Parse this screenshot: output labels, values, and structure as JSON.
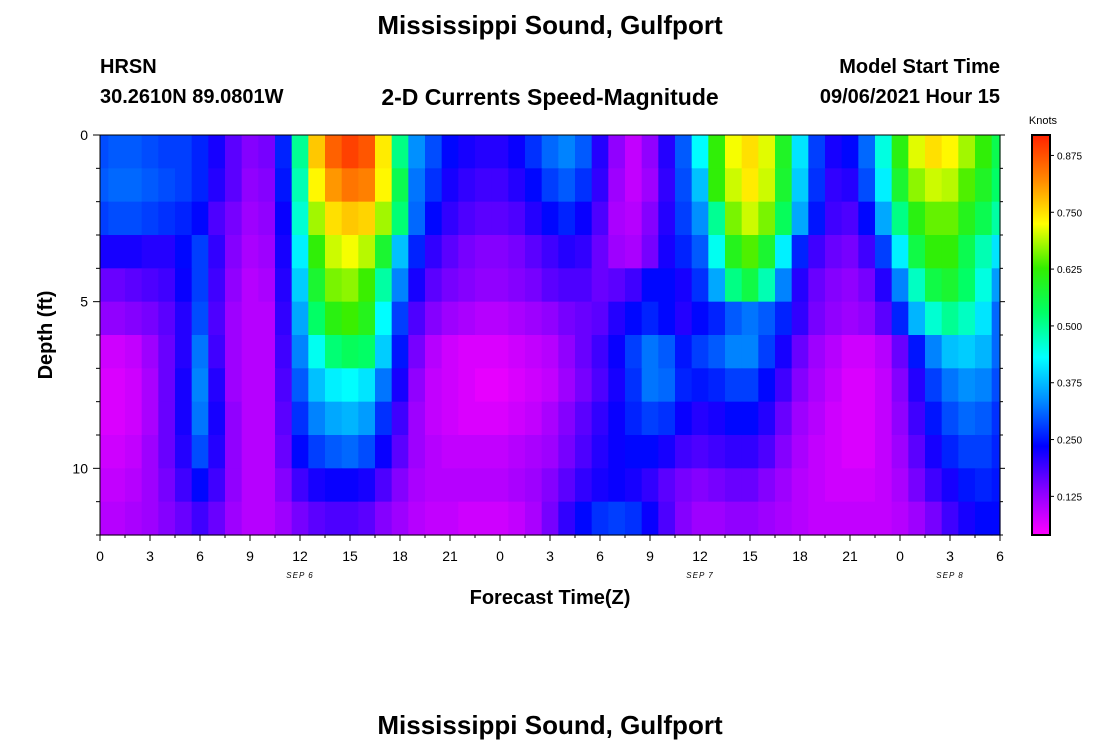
{
  "header": {
    "title": "Mississippi Sound, Gulfport",
    "station": "HRSN",
    "coordinates": "30.2610N  89.0801W",
    "subtitle": "2-D Currents Speed-Magnitude",
    "model_start_label": "Model Start Time",
    "model_start_value": "09/06/2021 Hour 15"
  },
  "footer": {
    "title": "Mississippi Sound, Gulfport"
  },
  "chart_data": {
    "type": "heatmap",
    "title": "2-D Currents Speed-Magnitude",
    "xlabel": "Forecast Time(Z)",
    "ylabel": "Depth (ft)",
    "x_tick_labels": [
      "0",
      "3",
      "6",
      "9",
      "12",
      "15",
      "18",
      "21",
      "0",
      "3",
      "6",
      "9",
      "12",
      "15",
      "18",
      "21",
      "0",
      "3",
      "6"
    ],
    "x_range_hours": [
      0,
      54
    ],
    "date_labels": [
      {
        "text": "SEP 6",
        "hour": 12
      },
      {
        "text": "SEP 7",
        "hour": 36
      },
      {
        "text": "SEP 8",
        "hour": 51
      }
    ],
    "y_ticks": [
      0,
      5,
      10
    ],
    "y_range_ft": [
      0,
      12
    ],
    "colorbar": {
      "label": "Knots",
      "range": [
        0.04,
        0.92
      ],
      "ticks": [
        "0.125",
        "0.250",
        "0.375",
        "0.500",
        "0.625",
        "0.750",
        "0.875"
      ],
      "colors": [
        "#ff00ff",
        "#8800ff",
        "#0000ff",
        "#0088ff",
        "#00ffff",
        "#00ff66",
        "#33ee00",
        "#ffff00",
        "#ff8800",
        "#ff2200"
      ]
    },
    "depth_layers_ft": [
      0.5,
      1.5,
      2.5,
      3.5,
      4.5,
      5.5,
      6.5,
      7.5,
      8.5,
      9.5,
      10.5,
      11.5
    ],
    "series": [
      {
        "depth_ft": 0.5,
        "values": [
          0.29,
          0.3,
          0.3,
          0.29,
          0.28,
          0.28,
          0.26,
          0.22,
          0.17,
          0.14,
          0.15,
          0.26,
          0.5,
          0.77,
          0.86,
          0.89,
          0.87,
          0.74,
          0.51,
          0.34,
          0.29,
          0.24,
          0.22,
          0.21,
          0.21,
          0.23,
          0.27,
          0.31,
          0.33,
          0.3,
          0.21,
          0.13,
          0.09,
          0.13,
          0.21,
          0.3,
          0.43,
          0.62,
          0.72,
          0.75,
          0.71,
          0.59,
          0.41,
          0.28,
          0.22,
          0.24,
          0.31,
          0.45,
          0.61,
          0.71,
          0.75,
          0.73,
          0.68,
          0.62,
          0.55
        ]
      },
      {
        "depth_ft": 1.5,
        "values": [
          0.3,
          0.31,
          0.31,
          0.3,
          0.29,
          0.28,
          0.26,
          0.21,
          0.17,
          0.13,
          0.14,
          0.25,
          0.48,
          0.73,
          0.81,
          0.84,
          0.83,
          0.73,
          0.55,
          0.32,
          0.27,
          0.22,
          0.2,
          0.19,
          0.19,
          0.21,
          0.24,
          0.28,
          0.3,
          0.27,
          0.2,
          0.12,
          0.09,
          0.12,
          0.2,
          0.29,
          0.38,
          0.62,
          0.7,
          0.74,
          0.7,
          0.58,
          0.39,
          0.27,
          0.2,
          0.21,
          0.29,
          0.42,
          0.58,
          0.67,
          0.7,
          0.69,
          0.64,
          0.59,
          0.53
        ]
      },
      {
        "depth_ft": 2.5,
        "values": [
          0.28,
          0.29,
          0.29,
          0.28,
          0.27,
          0.26,
          0.24,
          0.18,
          0.15,
          0.12,
          0.13,
          0.23,
          0.46,
          0.68,
          0.75,
          0.77,
          0.76,
          0.68,
          0.52,
          0.31,
          0.24,
          0.2,
          0.18,
          0.17,
          0.17,
          0.18,
          0.21,
          0.24,
          0.26,
          0.23,
          0.18,
          0.11,
          0.1,
          0.14,
          0.21,
          0.28,
          0.34,
          0.5,
          0.66,
          0.7,
          0.66,
          0.54,
          0.36,
          0.25,
          0.19,
          0.18,
          0.24,
          0.36,
          0.51,
          0.61,
          0.65,
          0.65,
          0.6,
          0.55,
          0.49
        ]
      },
      {
        "depth_ft": 3.5,
        "values": [
          0.22,
          0.22,
          0.22,
          0.21,
          0.21,
          0.24,
          0.28,
          0.2,
          0.14,
          0.11,
          0.12,
          0.22,
          0.42,
          0.62,
          0.7,
          0.72,
          0.69,
          0.58,
          0.38,
          0.26,
          0.2,
          0.17,
          0.15,
          0.14,
          0.14,
          0.15,
          0.17,
          0.19,
          0.21,
          0.2,
          0.16,
          0.12,
          0.11,
          0.15,
          0.22,
          0.26,
          0.3,
          0.44,
          0.6,
          0.64,
          0.58,
          0.42,
          0.26,
          0.19,
          0.16,
          0.15,
          0.19,
          0.28,
          0.42,
          0.56,
          0.62,
          0.62,
          0.55,
          0.48,
          0.41
        ]
      },
      {
        "depth_ft": 4.5,
        "values": [
          0.16,
          0.16,
          0.17,
          0.18,
          0.19,
          0.23,
          0.28,
          0.19,
          0.13,
          0.1,
          0.11,
          0.21,
          0.39,
          0.58,
          0.66,
          0.67,
          0.63,
          0.49,
          0.33,
          0.22,
          0.17,
          0.15,
          0.14,
          0.13,
          0.13,
          0.14,
          0.15,
          0.17,
          0.18,
          0.18,
          0.16,
          0.17,
          0.19,
          0.24,
          0.24,
          0.22,
          0.27,
          0.36,
          0.51,
          0.56,
          0.48,
          0.33,
          0.21,
          0.16,
          0.14,
          0.13,
          0.15,
          0.21,
          0.33,
          0.47,
          0.56,
          0.58,
          0.53,
          0.45,
          0.35
        ]
      },
      {
        "depth_ft": 5.5,
        "values": [
          0.13,
          0.13,
          0.14,
          0.15,
          0.17,
          0.21,
          0.29,
          0.18,
          0.12,
          0.1,
          0.1,
          0.2,
          0.36,
          0.53,
          0.61,
          0.63,
          0.6,
          0.43,
          0.28,
          0.18,
          0.14,
          0.12,
          0.11,
          0.1,
          0.1,
          0.11,
          0.12,
          0.13,
          0.15,
          0.16,
          0.17,
          0.21,
          0.24,
          0.26,
          0.24,
          0.21,
          0.24,
          0.26,
          0.3,
          0.32,
          0.3,
          0.26,
          0.2,
          0.15,
          0.13,
          0.12,
          0.13,
          0.17,
          0.26,
          0.37,
          0.46,
          0.5,
          0.47,
          0.41,
          0.31
        ]
      },
      {
        "depth_ft": 6.5,
        "values": [
          0.08,
          0.08,
          0.09,
          0.12,
          0.16,
          0.21,
          0.32,
          0.19,
          0.12,
          0.1,
          0.1,
          0.19,
          0.33,
          0.44,
          0.52,
          0.54,
          0.53,
          0.39,
          0.25,
          0.15,
          0.1,
          0.08,
          0.07,
          0.07,
          0.07,
          0.08,
          0.09,
          0.1,
          0.13,
          0.16,
          0.19,
          0.23,
          0.28,
          0.32,
          0.3,
          0.25,
          0.28,
          0.3,
          0.33,
          0.33,
          0.28,
          0.22,
          0.16,
          0.12,
          0.1,
          0.08,
          0.08,
          0.1,
          0.16,
          0.25,
          0.33,
          0.38,
          0.39,
          0.37,
          0.31
        ]
      },
      {
        "depth_ft": 7.5,
        "values": [
          0.07,
          0.07,
          0.08,
          0.11,
          0.16,
          0.22,
          0.33,
          0.21,
          0.12,
          0.1,
          0.1,
          0.18,
          0.3,
          0.38,
          0.42,
          0.43,
          0.41,
          0.32,
          0.22,
          0.13,
          0.09,
          0.08,
          0.07,
          0.06,
          0.06,
          0.07,
          0.08,
          0.09,
          0.12,
          0.15,
          0.18,
          0.22,
          0.27,
          0.32,
          0.31,
          0.26,
          0.25,
          0.26,
          0.28,
          0.28,
          0.24,
          0.19,
          0.14,
          0.11,
          0.09,
          0.07,
          0.07,
          0.09,
          0.14,
          0.21,
          0.28,
          0.32,
          0.34,
          0.33,
          0.29
        ]
      },
      {
        "depth_ft": 8.5,
        "values": [
          0.07,
          0.07,
          0.08,
          0.11,
          0.16,
          0.22,
          0.32,
          0.22,
          0.13,
          0.1,
          0.1,
          0.17,
          0.27,
          0.33,
          0.36,
          0.37,
          0.35,
          0.27,
          0.19,
          0.12,
          0.09,
          0.08,
          0.07,
          0.07,
          0.07,
          0.08,
          0.09,
          0.11,
          0.14,
          0.17,
          0.2,
          0.23,
          0.26,
          0.28,
          0.27,
          0.23,
          0.21,
          0.22,
          0.24,
          0.24,
          0.21,
          0.16,
          0.12,
          0.1,
          0.08,
          0.07,
          0.07,
          0.09,
          0.13,
          0.19,
          0.25,
          0.29,
          0.31,
          0.3,
          0.27
        ]
      },
      {
        "depth_ft": 9.5,
        "values": [
          0.08,
          0.08,
          0.09,
          0.12,
          0.16,
          0.21,
          0.29,
          0.21,
          0.13,
          0.1,
          0.1,
          0.16,
          0.24,
          0.28,
          0.3,
          0.31,
          0.29,
          0.23,
          0.17,
          0.12,
          0.1,
          0.09,
          0.09,
          0.09,
          0.09,
          0.1,
          0.11,
          0.12,
          0.15,
          0.18,
          0.21,
          0.23,
          0.24,
          0.24,
          0.22,
          0.19,
          0.18,
          0.19,
          0.2,
          0.2,
          0.18,
          0.14,
          0.11,
          0.09,
          0.08,
          0.07,
          0.07,
          0.09,
          0.12,
          0.17,
          0.22,
          0.26,
          0.28,
          0.28,
          0.26
        ]
      },
      {
        "depth_ft": 10.5,
        "values": [
          0.09,
          0.09,
          0.1,
          0.12,
          0.15,
          0.19,
          0.24,
          0.19,
          0.13,
          0.1,
          0.1,
          0.14,
          0.19,
          0.22,
          0.23,
          0.23,
          0.22,
          0.18,
          0.14,
          0.11,
          0.1,
          0.1,
          0.1,
          0.1,
          0.1,
          0.11,
          0.12,
          0.14,
          0.17,
          0.2,
          0.22,
          0.23,
          0.22,
          0.2,
          0.17,
          0.15,
          0.14,
          0.15,
          0.16,
          0.16,
          0.14,
          0.12,
          0.1,
          0.09,
          0.08,
          0.08,
          0.08,
          0.09,
          0.11,
          0.15,
          0.19,
          0.22,
          0.25,
          0.26,
          0.25
        ]
      },
      {
        "depth_ft": 11.5,
        "values": [
          0.1,
          0.1,
          0.11,
          0.12,
          0.14,
          0.16,
          0.19,
          0.16,
          0.12,
          0.1,
          0.1,
          0.12,
          0.15,
          0.17,
          0.18,
          0.18,
          0.17,
          0.14,
          0.12,
          0.1,
          0.09,
          0.09,
          0.08,
          0.08,
          0.08,
          0.09,
          0.11,
          0.15,
          0.2,
          0.24,
          0.27,
          0.28,
          0.27,
          0.23,
          0.18,
          0.14,
          0.12,
          0.12,
          0.13,
          0.13,
          0.12,
          0.11,
          0.1,
          0.09,
          0.09,
          0.09,
          0.09,
          0.09,
          0.1,
          0.12,
          0.15,
          0.19,
          0.22,
          0.24,
          0.24
        ]
      }
    ],
    "x_hours": [
      0,
      1,
      2,
      3,
      4,
      5,
      6,
      7,
      8,
      9,
      10,
      11,
      12,
      13,
      14,
      15,
      16,
      17,
      18,
      19,
      20,
      21,
      22,
      23,
      24,
      25,
      26,
      27,
      28,
      29,
      30,
      31,
      32,
      33,
      34,
      35,
      36,
      37,
      38,
      39,
      40,
      41,
      42,
      43,
      44,
      45,
      46,
      47,
      48,
      49,
      50,
      51,
      52,
      53,
      54
    ]
  }
}
